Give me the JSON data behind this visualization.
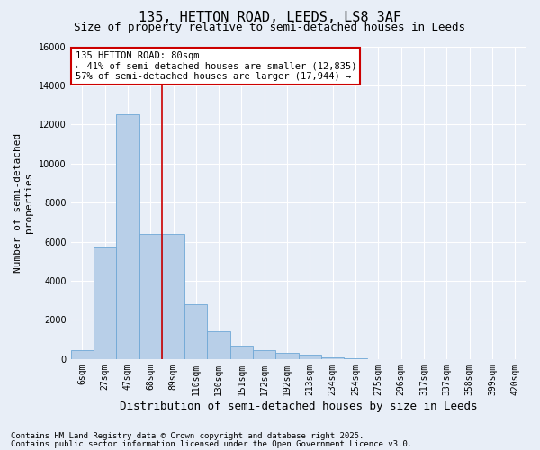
{
  "title": "135, HETTON ROAD, LEEDS, LS8 3AF",
  "subtitle": "Size of property relative to semi-detached houses in Leeds",
  "xlabel": "Distribution of semi-detached houses by size in Leeds",
  "ylabel": "Number of semi-detached\nproperties",
  "categories": [
    "6sqm",
    "27sqm",
    "47sqm",
    "68sqm",
    "89sqm",
    "110sqm",
    "130sqm",
    "151sqm",
    "172sqm",
    "192sqm",
    "213sqm",
    "234sqm",
    "254sqm",
    "275sqm",
    "296sqm",
    "317sqm",
    "337sqm",
    "358sqm",
    "399sqm",
    "420sqm"
  ],
  "values": [
    450,
    5700,
    12500,
    6400,
    6400,
    2800,
    1400,
    700,
    450,
    300,
    200,
    80,
    20,
    5,
    2,
    1,
    1,
    1,
    0,
    0
  ],
  "bar_color": "#b8cfe8",
  "bar_edge_color": "#6fa8d6",
  "vline_x_index": 3,
  "vline_color": "#cc0000",
  "annotation_text": "135 HETTON ROAD: 80sqm\n← 41% of semi-detached houses are smaller (12,835)\n57% of semi-detached houses are larger (17,944) →",
  "annotation_box_color": "#ffffff",
  "annotation_box_edge": "#cc0000",
  "ylim": [
    0,
    16000
  ],
  "yticks": [
    0,
    2000,
    4000,
    6000,
    8000,
    10000,
    12000,
    14000,
    16000
  ],
  "footer_line1": "Contains HM Land Registry data © Crown copyright and database right 2025.",
  "footer_line2": "Contains public sector information licensed under the Open Government Licence v3.0.",
  "bg_color": "#e8eef7",
  "grid_color": "#ffffff",
  "title_fontsize": 11,
  "subtitle_fontsize": 9,
  "tick_fontsize": 7,
  "ylabel_fontsize": 8,
  "xlabel_fontsize": 9,
  "footer_fontsize": 6.5
}
